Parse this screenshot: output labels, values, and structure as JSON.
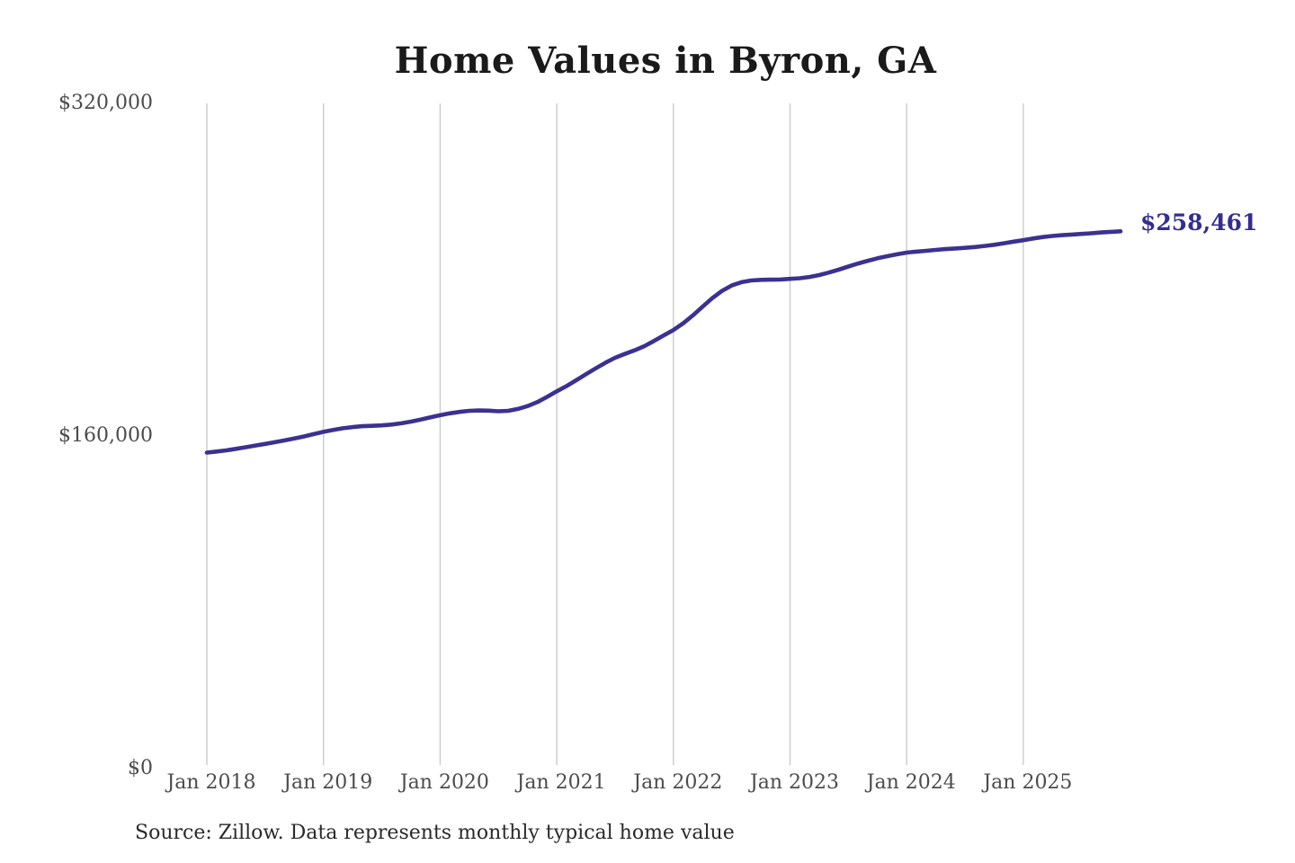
{
  "chart": {
    "title": "Home Values in Byron, GA",
    "end_label": "$258,461",
    "source": "Source: Zillow. Data represents monthly typical home value"
  },
  "chart_data": {
    "type": "line",
    "title": "Home Values in Byron, GA",
    "xlabel": "",
    "ylabel": "",
    "ylim": [
      0,
      320000
    ],
    "grid": "vertical-only",
    "gridline_color": "#cbcbcb",
    "line_color": "#3a3191",
    "annotation_color": "#332e91",
    "legend": "none",
    "y_ticks": [
      {
        "label": "$0",
        "value": 0
      },
      {
        "label": "$160,000",
        "value": 160000
      },
      {
        "label": "$320,000",
        "value": 320000
      }
    ],
    "x_tick_labels": [
      "Jan 2018",
      "Jan 2019",
      "Jan 2020",
      "Jan 2021",
      "Jan 2022",
      "Jan 2023",
      "Jan 2024",
      "Jan 2025"
    ],
    "start_month": "2018-01",
    "end_month": "2025-11",
    "latest_value": 258461,
    "annotation": "$258,461",
    "series": [
      {
        "name": "Typical home value (monthly)",
        "monthly_values": [
          152000,
          152500,
          153100,
          153800,
          154600,
          155400,
          156200,
          157000,
          157900,
          158800,
          159800,
          160900,
          162000,
          162900,
          163700,
          164300,
          164700,
          164900,
          165100,
          165500,
          166100,
          166900,
          167900,
          169000,
          170000,
          170900,
          171600,
          172100,
          172300,
          172200,
          171900,
          172100,
          173000,
          174400,
          176300,
          178800,
          181500,
          184000,
          186800,
          189700,
          192500,
          195200,
          197600,
          199500,
          201200,
          203200,
          205700,
          208400,
          211000,
          214200,
          218000,
          222200,
          226300,
          229800,
          232400,
          234000,
          234800,
          235100,
          235200,
          235300,
          235600,
          235900,
          236500,
          237400,
          238600,
          240000,
          241500,
          243000,
          244300,
          245500,
          246500,
          247400,
          248200,
          248700,
          249100,
          249500,
          249900,
          250200,
          250500,
          250900,
          251400,
          252000,
          252700,
          253500,
          254200,
          255000,
          255700,
          256200,
          256600,
          256900,
          257200,
          257500,
          257900,
          258200,
          258461
        ]
      }
    ]
  }
}
